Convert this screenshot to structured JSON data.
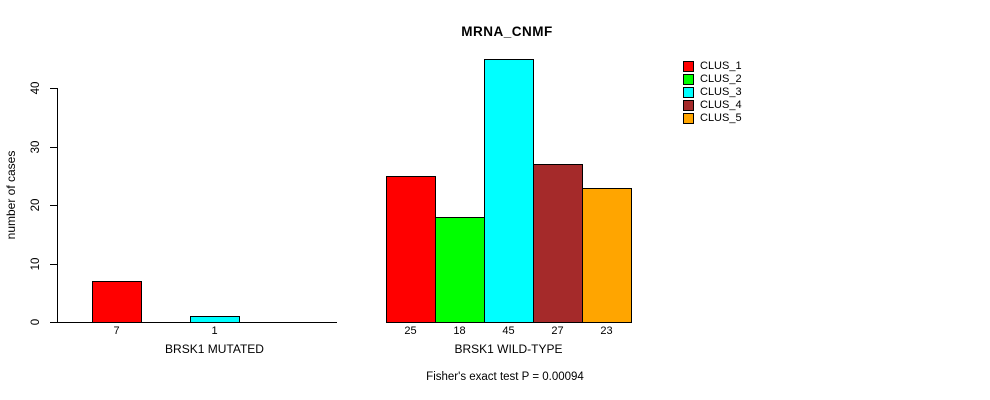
{
  "chart_data": {
    "type": "bar",
    "title": "MRNA_CNMF",
    "ylabel": "number of cases",
    "xlabel": "",
    "footnote": "Fisher's exact test P = 0.00094",
    "ylim": [
      0,
      45
    ],
    "yticks": [
      0,
      10,
      20,
      30,
      40
    ],
    "grid": false,
    "legend_position": "right",
    "clusters": [
      {
        "label": "CLUS_1",
        "color": "#FF0000"
      },
      {
        "label": "CLUS_2",
        "color": "#00FF00"
      },
      {
        "label": "CLUS_3",
        "color": "#00FFFF"
      },
      {
        "label": "CLUS_4",
        "color": "#A52A2A"
      },
      {
        "label": "CLUS_5",
        "color": "#FFA500"
      }
    ],
    "groups": [
      {
        "label": "BRSK1 MUTATED",
        "values": [
          7,
          0,
          1,
          0,
          0
        ],
        "bar_labels": [
          "7",
          "",
          "1",
          "",
          ""
        ]
      },
      {
        "label": "BRSK1 WILD-TYPE",
        "values": [
          25,
          18,
          45,
          27,
          23
        ],
        "bar_labels": [
          "25",
          "18",
          "45",
          "27",
          "23"
        ]
      }
    ],
    "axis_color": "#000000",
    "background_color": "#FFFFFF"
  }
}
